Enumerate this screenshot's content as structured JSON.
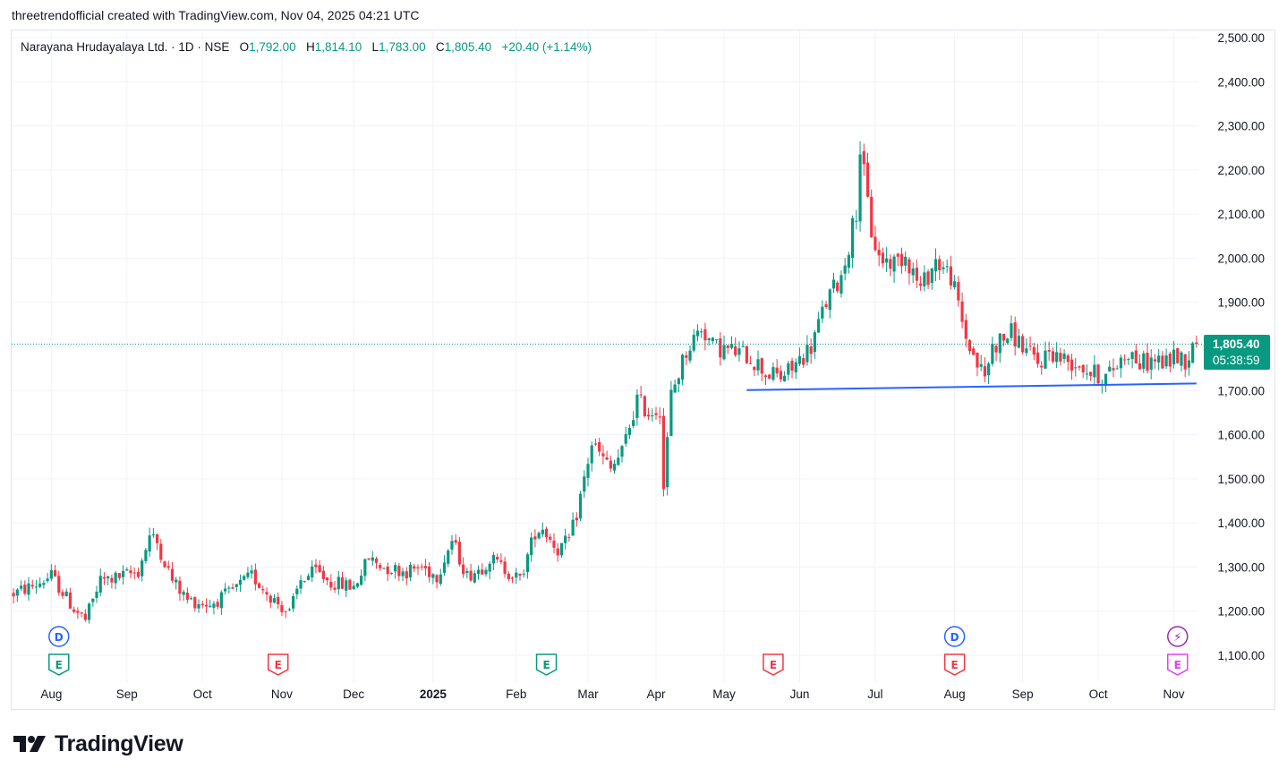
{
  "caption": "threetrendofficial created with TradingView.com, Nov 04, 2025 04:21 UTC",
  "legend": {
    "symbol": "Narayana Hrudayalaya Ltd. · 1D · NSE",
    "o_label": "O",
    "o_value": "1,792.00",
    "h_label": "H",
    "h_value": "1,814.10",
    "l_label": "L",
    "l_value": "1,783.00",
    "c_label": "C",
    "c_value": "1,805.40",
    "change": "+20.40 (+1.14%)"
  },
  "price_badge": {
    "price": "1,805.40",
    "countdown": "05:38:59"
  },
  "brand": {
    "name": "TradingView"
  },
  "colors": {
    "up": "#089981",
    "down": "#f23645",
    "trendline": "#2962ff",
    "dividend": "#2962ff",
    "split": "#9c27b0",
    "grid": "#f0f3fa"
  },
  "chart_data": {
    "type": "candlestick",
    "symbol": "Narayana Hrudayalaya Ltd.",
    "interval": "1D",
    "exchange": "NSE",
    "last_price": 1805.4,
    "y_axis": {
      "range": [
        1050,
        2520
      ],
      "ticks": [
        1100,
        1200,
        1300,
        1400,
        1500,
        1600,
        1700,
        1800,
        1900,
        2000,
        2100,
        2200,
        2300,
        2400,
        2500
      ],
      "tick_labels": [
        "1,100.00",
        "1,200.00",
        "1,300.00",
        "1,400.00",
        "1,500.00",
        "1,600.00",
        "1,700.00",
        "1,800.00",
        "1,900.00",
        "2,000.00",
        "2,100.00",
        "2,200.00",
        "2,300.00",
        "2,400.00",
        "2,500.00"
      ]
    },
    "x_axis": {
      "labels": [
        {
          "text": "Aug",
          "bold": false
        },
        {
          "text": "Sep",
          "bold": false
        },
        {
          "text": "Oct",
          "bold": false
        },
        {
          "text": "Nov",
          "bold": false
        },
        {
          "text": "Dec",
          "bold": false
        },
        {
          "text": "2025",
          "bold": true
        },
        {
          "text": "Feb",
          "bold": false
        },
        {
          "text": "Mar",
          "bold": false
        },
        {
          "text": "Apr",
          "bold": false
        },
        {
          "text": "May",
          "bold": false
        },
        {
          "text": "Jun",
          "bold": false
        },
        {
          "text": "Jul",
          "bold": false
        },
        {
          "text": "Aug",
          "bold": false
        },
        {
          "text": "Sep",
          "bold": false
        },
        {
          "text": "Oct",
          "bold": false
        },
        {
          "text": "Nov",
          "bold": false
        }
      ],
      "label_bar_index": [
        10,
        30,
        50,
        71,
        90,
        111,
        133,
        152,
        170,
        188,
        208,
        228,
        249,
        267,
        287,
        307
      ]
    },
    "price_path": [
      [
        0,
        1240
      ],
      [
        6,
        1260
      ],
      [
        10,
        1280
      ],
      [
        16,
        1205
      ],
      [
        19,
        1180
      ],
      [
        23,
        1270
      ],
      [
        27,
        1275
      ],
      [
        33,
        1290
      ],
      [
        36,
        1370
      ],
      [
        38,
        1355
      ],
      [
        42,
        1270
      ],
      [
        46,
        1225
      ],
      [
        52,
        1215
      ],
      [
        57,
        1240
      ],
      [
        63,
        1280
      ],
      [
        69,
        1225
      ],
      [
        73,
        1195
      ],
      [
        76,
        1270
      ],
      [
        80,
        1290
      ],
      [
        84,
        1265
      ],
      [
        90,
        1255
      ],
      [
        94,
        1320
      ],
      [
        98,
        1300
      ],
      [
        104,
        1290
      ],
      [
        108,
        1300
      ],
      [
        112,
        1280
      ],
      [
        116,
        1360
      ],
      [
        120,
        1280
      ],
      [
        124,
        1300
      ],
      [
        126,
        1320
      ],
      [
        130,
        1295
      ],
      [
        134,
        1270
      ],
      [
        138,
        1380
      ],
      [
        140,
        1390
      ],
      [
        144,
        1340
      ],
      [
        147,
        1360
      ],
      [
        149,
        1420
      ],
      [
        151,
        1500
      ],
      [
        153,
        1580
      ],
      [
        158,
        1520
      ],
      [
        161,
        1560
      ],
      [
        165,
        1680
      ],
      [
        168,
        1650
      ],
      [
        171,
        1660
      ],
      [
        172,
        1480
      ],
      [
        174,
        1690
      ],
      [
        178,
        1790
      ],
      [
        182,
        1845
      ],
      [
        185,
        1800
      ],
      [
        190,
        1790
      ],
      [
        194,
        1780
      ],
      [
        197,
        1760
      ],
      [
        199,
        1740
      ],
      [
        203,
        1730
      ],
      [
        206,
        1750
      ],
      [
        211,
        1800
      ],
      [
        215,
        1900
      ],
      [
        219,
        1960
      ],
      [
        221,
        2030
      ],
      [
        223,
        2110
      ],
      [
        224,
        2250
      ],
      [
        227,
        2060
      ],
      [
        229,
        2000
      ],
      [
        233,
        1990
      ],
      [
        236,
        2010
      ],
      [
        240,
        1930
      ],
      [
        244,
        1995
      ],
      [
        248,
        1960
      ],
      [
        250,
        1890
      ],
      [
        252,
        1820
      ],
      [
        255,
        1760
      ],
      [
        257,
        1730
      ],
      [
        259,
        1800
      ],
      [
        264,
        1830
      ],
      [
        268,
        1790
      ],
      [
        271,
        1760
      ],
      [
        274,
        1790
      ],
      [
        278,
        1770
      ],
      [
        282,
        1760
      ],
      [
        285,
        1740
      ],
      [
        289,
        1730
      ],
      [
        292,
        1760
      ],
      [
        295,
        1790
      ],
      [
        298,
        1760
      ],
      [
        302,
        1770
      ],
      [
        305,
        1760
      ],
      [
        307,
        1780
      ],
      [
        310,
        1770
      ],
      [
        313,
        1805.4
      ]
    ],
    "trendline": {
      "from": [
        194,
        1701
      ],
      "to": [
        313,
        1716
      ]
    },
    "events": [
      {
        "type": "dividend",
        "label": "D",
        "bar": 12
      },
      {
        "type": "earnings",
        "label": "E",
        "bar": 12,
        "status": "beat"
      },
      {
        "type": "earnings",
        "label": "E",
        "bar": 70,
        "status": "miss"
      },
      {
        "type": "earnings",
        "label": "E",
        "bar": 141,
        "status": "beat"
      },
      {
        "type": "earnings",
        "label": "E",
        "bar": 201,
        "status": "miss"
      },
      {
        "type": "dividend",
        "label": "D",
        "bar": 249
      },
      {
        "type": "earnings",
        "label": "E",
        "bar": 249,
        "status": "miss"
      },
      {
        "type": "split",
        "label": "⚡",
        "bar": 308
      },
      {
        "type": "earnings",
        "label": "E",
        "bar": 308,
        "status": "upcoming"
      }
    ]
  }
}
